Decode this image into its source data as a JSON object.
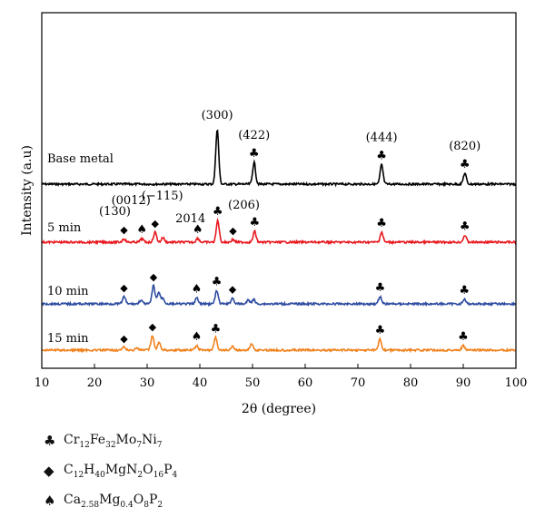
{
  "chart_data": {
    "type": "line",
    "xlabel": "2θ (degree)",
    "ylabel": "Intensity (a.u)",
    "xlim": [
      10,
      100
    ],
    "xticks": [
      10,
      20,
      30,
      40,
      50,
      60,
      70,
      80,
      90,
      100
    ],
    "series": [
      {
        "name": "Base metal",
        "color": "#000000",
        "baseline": 0,
        "peaks": [
          [
            43.3,
            5.0
          ],
          [
            50.3,
            2.0
          ],
          [
            74.5,
            1.8
          ],
          [
            90.3,
            1.0
          ]
        ]
      },
      {
        "name": "5 min",
        "color": "#e8181f",
        "baseline": 0,
        "peaks": [
          [
            25.6,
            0.45
          ],
          [
            29.0,
            0.45
          ],
          [
            31.5,
            1.3
          ],
          [
            33.0,
            0.6
          ],
          [
            39.6,
            0.5
          ],
          [
            43.4,
            2.8
          ],
          [
            46.3,
            0.35
          ],
          [
            50.4,
            1.4
          ],
          [
            74.5,
            1.3
          ],
          [
            90.3,
            0.9
          ]
        ]
      },
      {
        "name": "10 min",
        "color": "#2e4ca0",
        "baseline": 0,
        "peaks": [
          [
            25.6,
            1.0
          ],
          [
            28.8,
            0.5
          ],
          [
            31.2,
            2.5
          ],
          [
            32.2,
            1.6
          ],
          [
            33.0,
            0.8
          ],
          [
            39.4,
            0.8
          ],
          [
            43.2,
            1.8
          ],
          [
            46.2,
            0.8
          ],
          [
            49.2,
            0.5
          ],
          [
            50.2,
            0.6
          ],
          [
            74.2,
            1.0
          ],
          [
            90.2,
            0.6
          ]
        ]
      },
      {
        "name": "15 min",
        "color": "#f0821e",
        "baseline": 0,
        "peaks": [
          [
            25.6,
            0.4
          ],
          [
            28.0,
            0.3
          ],
          [
            31.0,
            2.0
          ],
          [
            32.3,
            1.1
          ],
          [
            39.4,
            0.6
          ],
          [
            43.0,
            1.7
          ],
          [
            46.2,
            0.5
          ],
          [
            49.8,
            0.9
          ],
          [
            74.2,
            1.5
          ],
          [
            90.0,
            0.6
          ]
        ]
      }
    ],
    "annotations": [
      {
        "text": "(300)",
        "x": 43.3,
        "series": "Base metal"
      },
      {
        "text": "(422)",
        "x": 50.3,
        "series": "Base metal"
      },
      {
        "text": "(444)",
        "x": 74.5,
        "series": "Base metal"
      },
      {
        "text": "(820)",
        "x": 90.3,
        "series": "Base metal"
      },
      {
        "text": "(130)",
        "x": 25.6,
        "series": "5 min"
      },
      {
        "text": "(0012)",
        "x": 29.0,
        "series": "5 min"
      },
      {
        "text": "(−115)",
        "x": 31.5,
        "series": "5 min"
      },
      {
        "text": "2014",
        "x": 39.6,
        "series": "5 min"
      },
      {
        "text": "(206)",
        "x": 46.3,
        "series": "5 min"
      }
    ],
    "markers": [
      {
        "series": "Base metal",
        "x": 50.3,
        "phase": "club"
      },
      {
        "series": "Base metal",
        "x": 74.5,
        "phase": "club"
      },
      {
        "series": "Base metal",
        "x": 90.3,
        "phase": "club"
      },
      {
        "series": "5 min",
        "x": 25.6,
        "phase": "diamond"
      },
      {
        "series": "5 min",
        "x": 29.0,
        "phase": "spade"
      },
      {
        "series": "5 min",
        "x": 31.5,
        "phase": "diamond"
      },
      {
        "series": "5 min",
        "x": 39.6,
        "phase": "spade"
      },
      {
        "series": "5 min",
        "x": 43.4,
        "phase": "club"
      },
      {
        "series": "5 min",
        "x": 46.3,
        "phase": "diamond"
      },
      {
        "series": "5 min",
        "x": 50.4,
        "phase": "club"
      },
      {
        "series": "5 min",
        "x": 74.5,
        "phase": "club"
      },
      {
        "series": "5 min",
        "x": 90.3,
        "phase": "club"
      },
      {
        "series": "10 min",
        "x": 25.6,
        "phase": "diamond"
      },
      {
        "series": "10 min",
        "x": 31.2,
        "phase": "diamond"
      },
      {
        "series": "10 min",
        "x": 39.4,
        "phase": "spade"
      },
      {
        "series": "10 min",
        "x": 43.2,
        "phase": "club"
      },
      {
        "series": "10 min",
        "x": 46.2,
        "phase": "diamond"
      },
      {
        "series": "10 min",
        "x": 74.2,
        "phase": "club"
      },
      {
        "series": "10 min",
        "x": 90.2,
        "phase": "club"
      },
      {
        "series": "15 min",
        "x": 25.6,
        "phase": "diamond"
      },
      {
        "series": "15 min",
        "x": 31.0,
        "phase": "diamond"
      },
      {
        "series": "15 min",
        "x": 39.4,
        "phase": "spade"
      },
      {
        "series": "15 min",
        "x": 43.0,
        "phase": "club"
      },
      {
        "series": "15 min",
        "x": 74.2,
        "phase": "club"
      },
      {
        "series": "15 min",
        "x": 90.0,
        "phase": "club"
      }
    ],
    "legend": [
      {
        "symbol": "club",
        "glyph": "♣",
        "parts": [
          [
            "Cr",
            ""
          ],
          [
            "12",
            "sub"
          ],
          [
            "Fe",
            ""
          ],
          [
            "32",
            "sub"
          ],
          [
            "Mo",
            ""
          ],
          [
            "7",
            "sub"
          ],
          [
            "Ni",
            ""
          ],
          [
            "7",
            "sub"
          ]
        ]
      },
      {
        "symbol": "diamond",
        "glyph": "◆",
        "parts": [
          [
            "C",
            ""
          ],
          [
            "12",
            "sub"
          ],
          [
            "H",
            ""
          ],
          [
            "40",
            "sub"
          ],
          [
            "MgN",
            ""
          ],
          [
            "2",
            "sub"
          ],
          [
            "O",
            ""
          ],
          [
            "16",
            "sub"
          ],
          [
            "P",
            ""
          ],
          [
            "4",
            "sub"
          ]
        ]
      },
      {
        "symbol": "spade",
        "glyph": "♠",
        "parts": [
          [
            "Ca",
            ""
          ],
          [
            "2.58",
            "sub"
          ],
          [
            "Mg",
            ""
          ],
          [
            "0.4",
            "sub"
          ],
          [
            "O",
            ""
          ],
          [
            "8",
            "sub"
          ],
          [
            "P",
            ""
          ],
          [
            "2",
            "sub"
          ]
        ]
      }
    ]
  }
}
